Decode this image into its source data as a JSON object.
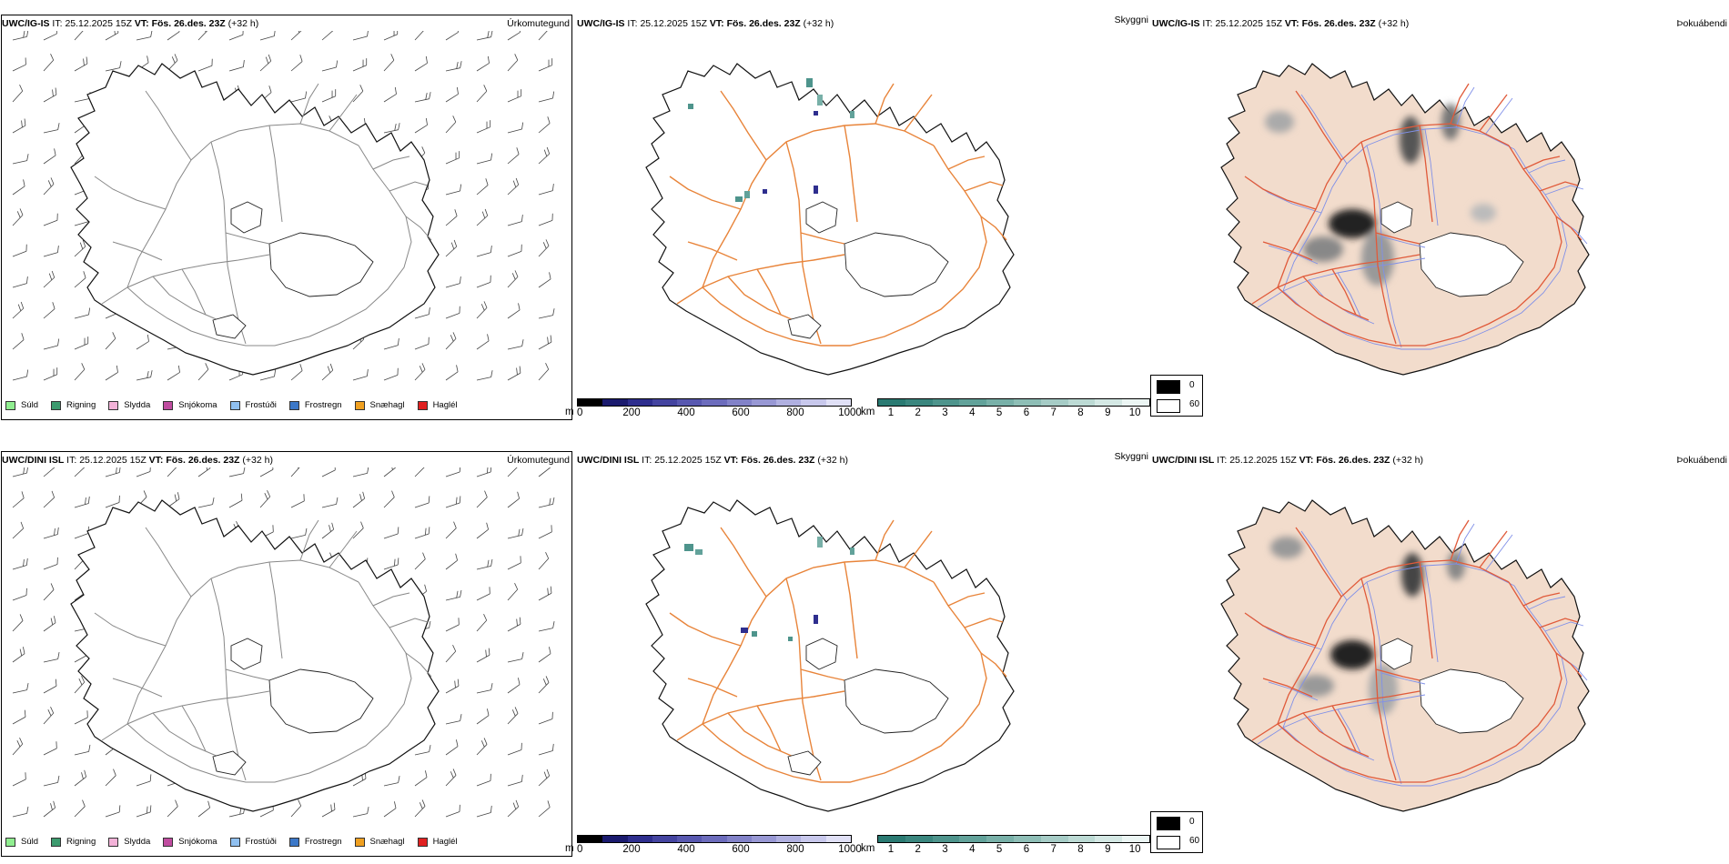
{
  "rows": [
    {
      "model": "UWC/IG-IS",
      "it_label": "IT:",
      "it_value": "25.12.2025 15Z",
      "vt_label": "VT:",
      "vt_value": "Fös. 26.des. 23Z",
      "lead": "(+32 h)"
    },
    {
      "model": "UWC/DINI ISL",
      "it_label": "IT:",
      "it_value": "25.12.2025 15Z",
      "vt_label": "VT:",
      "vt_value": "Fös. 26.des. 23Z",
      "lead": "(+32 h)"
    }
  ],
  "panels": {
    "precip_title": "Úrkomutegund",
    "visibility_title": "Skyggni",
    "fog_title": "Þokuábendi"
  },
  "precip_legend": [
    {
      "label": "Súld",
      "color": "#90ee90"
    },
    {
      "label": "Rigning",
      "color": "#3c9a6e"
    },
    {
      "label": "Slydda",
      "color": "#f3b2d8"
    },
    {
      "label": "Snjókoma",
      "color": "#c04ca0"
    },
    {
      "label": "Frostúði",
      "color": "#90c0f0"
    },
    {
      "label": "Frostregn",
      "color": "#3c78c8"
    },
    {
      "label": "Snæhagl",
      "color": "#f0a020"
    },
    {
      "label": "Haglél",
      "color": "#e02020"
    }
  ],
  "terrain_bar": {
    "unit": "m",
    "ticks": [
      "0",
      "200",
      "400",
      "600",
      "800",
      "1000"
    ],
    "colors": [
      "#000000",
      "#1a1a6e",
      "#2e2e8e",
      "#4444a0",
      "#5858b0",
      "#6c6cbc",
      "#8282c8",
      "#9898d4",
      "#b0b0e0",
      "#c8c8ec",
      "#e0e0f6"
    ]
  },
  "visibility_bar": {
    "unit": "km",
    "ticks": [
      "1",
      "2",
      "3",
      "4",
      "5",
      "6",
      "7",
      "8",
      "9",
      "10"
    ],
    "colors": [
      "#2a7a72",
      "#3a867e",
      "#4e948c",
      "#62a29a",
      "#78b0a8",
      "#8ebeb6",
      "#a6ccc6",
      "#bcdad4",
      "#d4e8e4",
      "#ecf6f4"
    ]
  },
  "fog_legend": [
    {
      "label": "0",
      "color": "#000000"
    },
    {
      "label": "60",
      "color": "#ffffff"
    }
  ],
  "colors": {
    "roads": "#e8843a",
    "roads_fog": "#e05a3a",
    "rivers": "#8090e8",
    "land_fog": "#f2dccc",
    "coast": "#111111",
    "barbs": "#444444"
  }
}
